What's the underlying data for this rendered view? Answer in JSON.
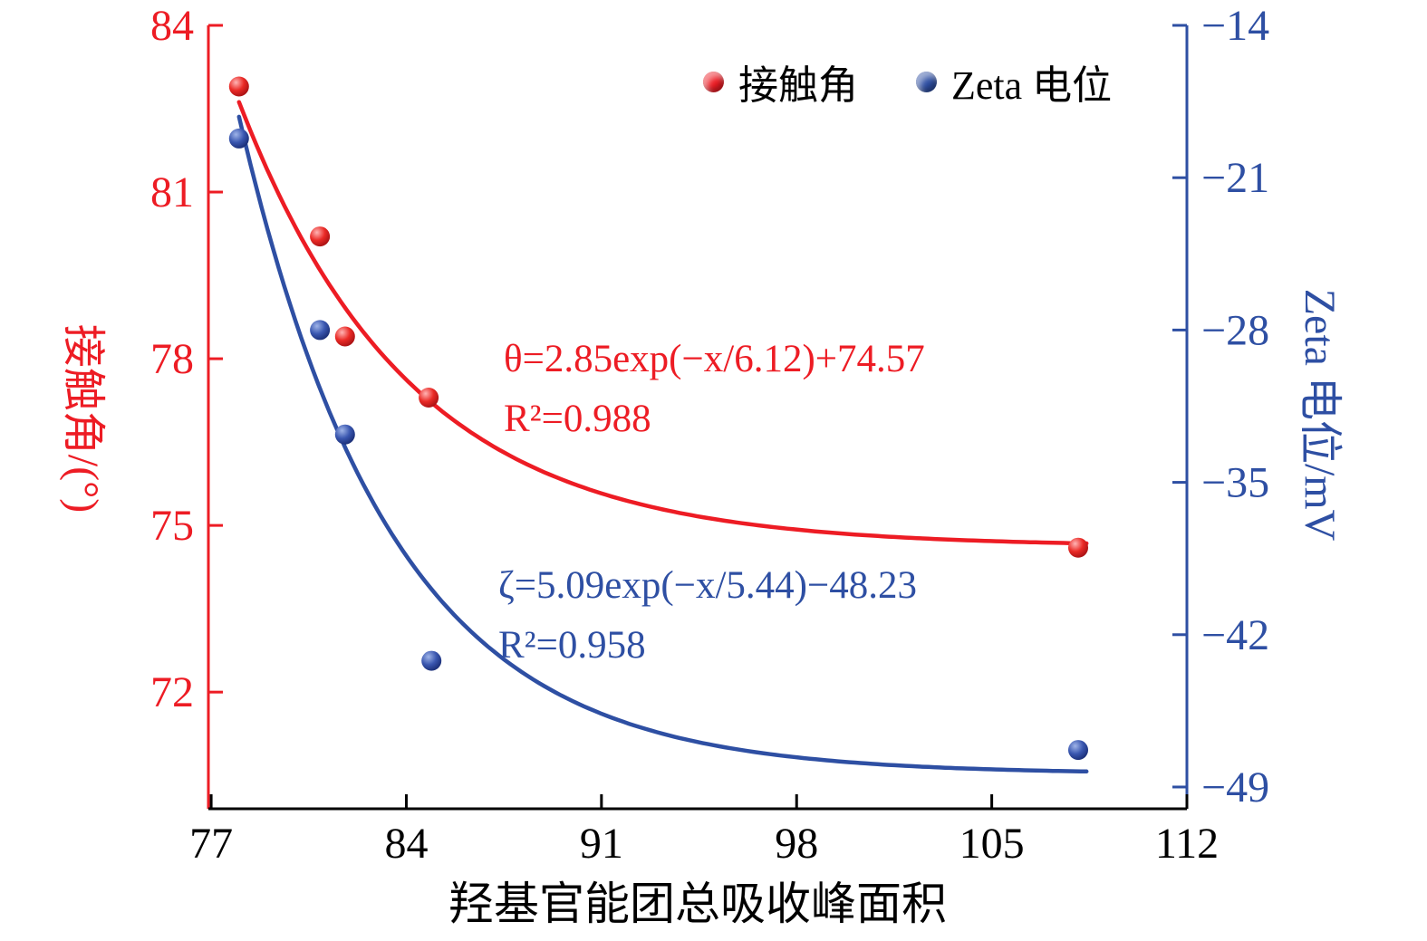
{
  "figure": {
    "background": "#ffffff",
    "colors": {
      "red": "#ed1c24",
      "blue": "#2e4fa3",
      "black": "#000000"
    }
  },
  "legend": [
    {
      "label": "接触角",
      "color": "#ed1c24"
    },
    {
      "label": "Zeta 电位",
      "color": "#2e4fa3"
    }
  ],
  "axes": {
    "x": {
      "label": "羟基官能团总吸收峰面积",
      "ticks": [
        77,
        84,
        91,
        98,
        105,
        112
      ],
      "range": [
        76.9,
        112
      ]
    },
    "y_left": {
      "label": "接触角/(°)",
      "ticks": [
        84,
        81,
        78,
        75,
        72
      ],
      "range": [
        69.9,
        84
      ],
      "color": "#ed1c24"
    },
    "y_right": {
      "label": "Zeta 电位/mV",
      "ticks": [
        -14,
        -21,
        -28,
        -35,
        -42,
        -49
      ],
      "range": [
        -50,
        -14
      ],
      "color": "#2e4fa3"
    }
  },
  "annotations": {
    "red_equation": "θ=2.85exp(−x/6.12)+74.57",
    "red_r2": "R²=0.988",
    "blue_equation": "ζ=5.09exp(−x/5.44)−48.23",
    "blue_r2": "R²=0.958"
  },
  "chart_data": {
    "type": "scatter",
    "title": "",
    "xlabel": "羟基官能团总吸收峰面积",
    "ylabel_left": "接触角/(°)",
    "ylabel_right": "Zeta 电位/mV",
    "x_range": [
      76.9,
      112
    ],
    "y_left_range": [
      69.9,
      84
    ],
    "y_right_range": [
      -50,
      -14
    ],
    "grid": false,
    "legend_position": "top-right-inside",
    "series": [
      {
        "name": "接触角",
        "axis": "left",
        "color": "#ed1c24",
        "marker": "sphere",
        "points": [
          [
            78.0,
            82.9
          ],
          [
            80.9,
            80.2
          ],
          [
            81.8,
            78.4
          ],
          [
            84.8,
            77.3
          ],
          [
            108.1,
            74.6
          ]
        ],
        "fit": {
          "equation": "θ=2.85exp(−x/6.12)+74.57",
          "r2": 0.988,
          "draw": {
            "A": 8.0,
            "tau": 6.12,
            "x0": 78,
            "c": 74.62,
            "xmin": 78,
            "xmax": 108.4
          }
        }
      },
      {
        "name": "Zeta 电位",
        "axis": "right",
        "color": "#2e4fa3",
        "marker": "sphere",
        "points": [
          [
            78.0,
            -19.2
          ],
          [
            80.9,
            -28.0
          ],
          [
            81.8,
            -32.8
          ],
          [
            84.9,
            -43.2
          ],
          [
            108.1,
            -47.3
          ]
        ],
        "fit": {
          "equation": "ζ=5.09exp(−x/5.44)−48.23",
          "r2": 0.958,
          "draw": {
            "A": 30.2,
            "tau": 5.44,
            "x0": 78,
            "c": -48.4,
            "xmin": 78,
            "xmax": 108.4
          }
        }
      }
    ]
  }
}
